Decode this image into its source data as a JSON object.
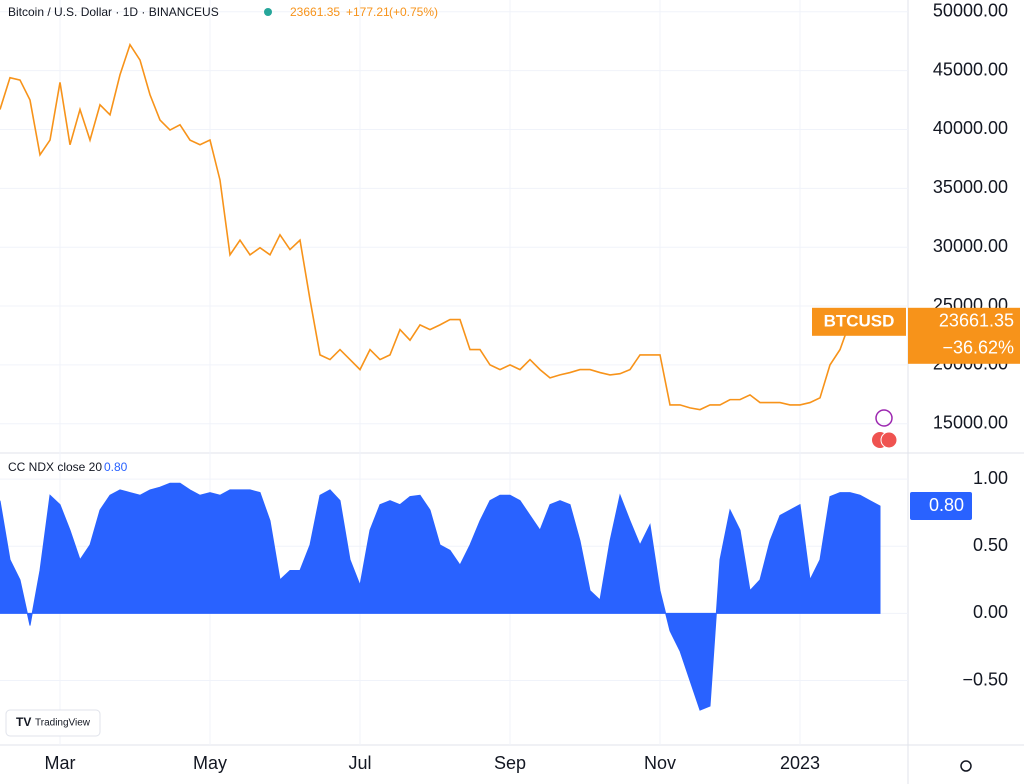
{
  "header": {
    "symbol": "Bitcoin / U.S. Dollar · 1D · BINANCEUS",
    "change": "+177.21",
    "change_pct": "(+0.75%)"
  },
  "logo": "TradingView",
  "chart_data": [
    {
      "type": "line",
      "series": [
        {
          "name": "BTCUSD",
          "color": "#f7931a",
          "values": [
            41700,
            44400,
            44200,
            42500,
            37850,
            39100,
            44000,
            38700,
            41700,
            39100,
            42100,
            41250,
            44650,
            47200,
            45900,
            42950,
            40800,
            39950,
            40400,
            39100,
            38700,
            39100,
            35700,
            29350,
            30600,
            29350,
            29950,
            29350,
            31050,
            29800,
            30600,
            25550,
            20850,
            20450,
            21300,
            20450,
            19600,
            21300,
            20450,
            20850,
            23000,
            22100,
            23400,
            23000,
            23400,
            23850,
            23850,
            21300,
            21300,
            20000,
            19600,
            20000,
            19600,
            20450,
            19600,
            18900,
            19150,
            19350,
            19600,
            19600,
            19350,
            19150,
            19250,
            19600,
            20850,
            20850,
            20850,
            16600,
            16600,
            16350,
            16200,
            16600,
            16600,
            17050,
            17050,
            17450,
            16800,
            16800,
            16800,
            16600,
            16600,
            16800,
            17200,
            20000,
            21300,
            23661.35,
            null,
            null,
            null
          ]
        }
      ],
      "badge_change": "−36.62%",
      "ylim": [
        12600,
        51000
      ],
      "yticks": [
        {
          "value": 15000,
          "label": "15000.00"
        },
        {
          "value": 20000,
          "label": "20000.00"
        },
        {
          "value": 25000,
          "label": "25000.00"
        },
        {
          "value": 30000,
          "label": "30000.00"
        },
        {
          "value": 35000,
          "label": "35000.00"
        },
        {
          "value": 40000,
          "label": "40000.00"
        },
        {
          "value": 45000,
          "label": "45000.00"
        },
        {
          "value": 50000,
          "label": "50000.00"
        }
      ],
      "grid": true
    },
    {
      "type": "area",
      "title": "CC NDX close 20",
      "categories": [
        null,
        null,
        null,
        null,
        null,
        null,
        "Mar",
        null,
        null,
        null,
        null,
        null,
        null,
        null,
        null,
        null,
        null,
        null,
        null,
        null,
        null,
        "May",
        null,
        null,
        null,
        null,
        null,
        null,
        null,
        null,
        null,
        null,
        null,
        null,
        null,
        null,
        "Jul",
        null,
        null,
        null,
        null,
        null,
        null,
        null,
        null,
        null,
        null,
        null,
        null,
        null,
        null,
        "Sep",
        null,
        null,
        null,
        null,
        null,
        null,
        null,
        null,
        null,
        null,
        null,
        null,
        null,
        null,
        "Nov",
        null,
        null,
        null,
        null,
        null,
        null,
        null,
        null,
        null,
        null,
        null,
        null,
        null,
        "2023",
        null,
        null,
        null,
        null,
        null,
        null,
        null,
        null
      ],
      "series": [
        {
          "color": "#2962ff",
          "values": [
            0.84,
            0.4,
            0.25,
            -0.09,
            0.32,
            0.88,
            0.81,
            0.62,
            0.4,
            0.51,
            0.77,
            0.88,
            0.92,
            0.9,
            0.88,
            0.92,
            0.94,
            0.97,
            0.97,
            0.92,
            0.88,
            0.9,
            0.88,
            0.92,
            0.92,
            0.92,
            0.9,
            0.69,
            0.25,
            0.32,
            0.32,
            0.51,
            0.88,
            0.92,
            0.84,
            0.4,
            0.21,
            0.62,
            0.81,
            0.84,
            0.81,
            0.87,
            0.88,
            0.77,
            0.51,
            0.47,
            0.36,
            0.51,
            0.69,
            0.84,
            0.88,
            0.88,
            0.84,
            0.73,
            0.62,
            0.81,
            0.84,
            0.81,
            0.54,
            0.17,
            0.1,
            0.54,
            0.88,
            0.69,
            0.51,
            0.66,
            0.17,
            -0.13,
            -0.28,
            -0.5,
            -0.72,
            -0.69,
            0.4,
            0.77,
            0.62,
            0.17,
            0.25,
            0.54,
            0.73,
            0.77,
            0.81,
            0.25,
            0.4,
            0.87,
            0.9,
            0.9,
            0.88,
            0.84,
            0.8
          ],
          "value_labels": [
            null,
            null,
            null,
            null,
            null,
            null,
            null,
            null,
            null,
            null,
            null,
            null,
            null,
            null,
            null,
            null,
            null,
            null,
            null,
            null,
            null,
            null,
            null,
            null,
            null,
            null,
            null,
            null,
            null,
            null,
            null,
            null,
            null,
            null,
            null,
            null,
            null,
            null,
            null,
            null,
            null,
            null,
            null,
            null,
            null,
            null,
            null,
            null,
            null,
            null,
            null,
            null,
            null,
            null,
            null,
            null,
            null,
            null,
            null,
            null,
            null,
            null,
            null,
            null,
            null,
            null,
            null,
            null,
            null,
            null,
            null,
            null,
            null,
            null,
            null,
            null,
            null,
            null,
            null,
            null,
            null,
            null,
            null,
            null,
            null,
            null,
            null,
            null,
            "0.80"
          ]
        }
      ],
      "ylim": [
        -0.98,
        1.18
      ],
      "yticks": [
        {
          "value": -0.5,
          "label": "−0.50"
        },
        {
          "value": 0,
          "label": "0.00"
        },
        {
          "value": 0.5,
          "label": "0.50"
        },
        {
          "value": 1,
          "label": "1.00"
        }
      ],
      "grid": true
    }
  ]
}
